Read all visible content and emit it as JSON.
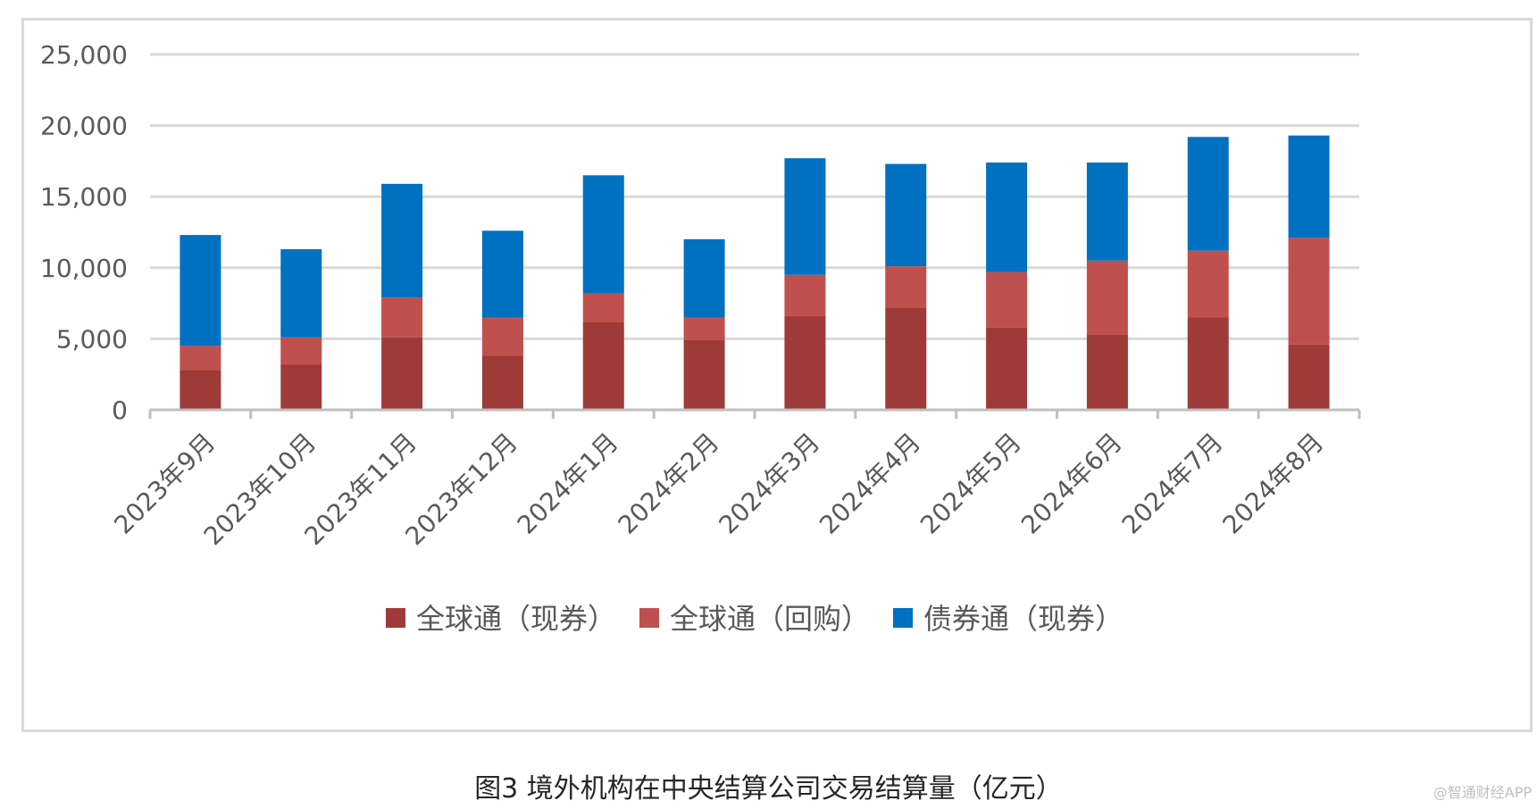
{
  "chart_data": {
    "type": "bar",
    "stacked": true,
    "title": "图3 境外机构在中央结算公司交易结算量（亿元）",
    "categories": [
      "2023年9月",
      "2023年10月",
      "2023年11月",
      "2023年12月",
      "2024年1月",
      "2024年2月",
      "2024年3月",
      "2024年4月",
      "2024年5月",
      "2024年6月",
      "2024年7月",
      "2024年8月"
    ],
    "series": [
      {
        "name": "全球通（现券）",
        "color": "#9e3b38",
        "values": [
          2800,
          3200,
          5100,
          3800,
          6200,
          4900,
          6600,
          7200,
          5800,
          5300,
          6500,
          4600
        ]
      },
      {
        "name": "全球通（回购）",
        "color": "#c0504d",
        "values": [
          1700,
          1900,
          2800,
          2700,
          2000,
          1600,
          2900,
          2900,
          3900,
          5200,
          4700,
          7500
        ]
      },
      {
        "name": "债券通（现券）",
        "color": "#0070c0",
        "values": [
          7800,
          6200,
          8000,
          6100,
          8300,
          5500,
          8200,
          7200,
          7700,
          6900,
          8000,
          7200
        ]
      }
    ],
    "ylim": [
      0,
      25000
    ],
    "yticks": [
      "0",
      "5,000",
      "10,000",
      "15,000",
      "20,000",
      "25,000"
    ],
    "ytick_values": [
      0,
      5000,
      10000,
      15000,
      20000,
      25000
    ],
    "grid": true,
    "legend": "bottom",
    "xlabel": "",
    "ylabel": ""
  },
  "watermark": "@智通财经APP"
}
